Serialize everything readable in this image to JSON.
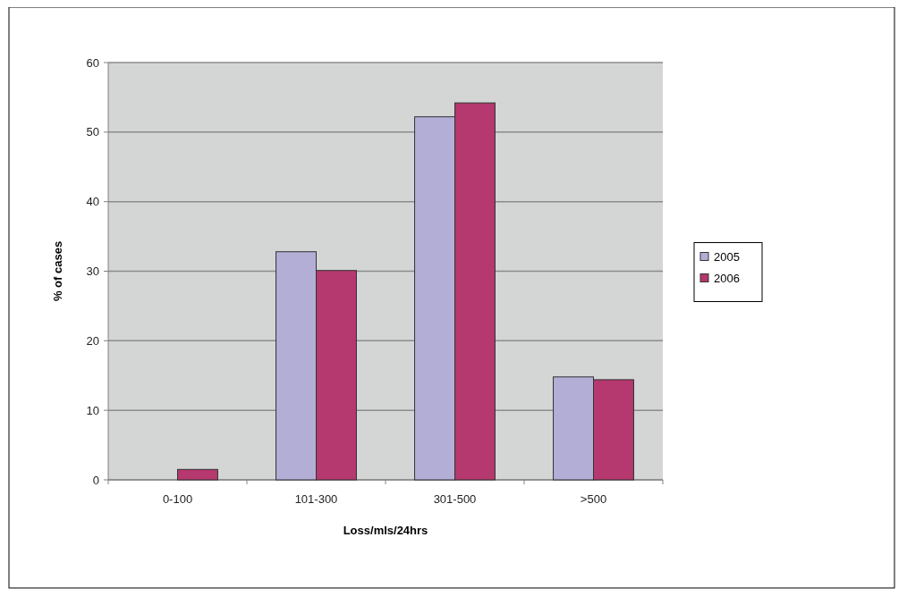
{
  "chart_data": {
    "type": "bar",
    "xlabel": "Loss/mls/24hrs",
    "ylabel": "% of cases",
    "categories": [
      "0-100",
      "101-300",
      "301-500",
      ">500"
    ],
    "series": [
      {
        "name": "2005",
        "color": "#b3aed6",
        "values": [
          0,
          32.8,
          52.2,
          14.8
        ]
      },
      {
        "name": "2006",
        "color": "#b5386f",
        "values": [
          1.5,
          30.1,
          54.2,
          14.4
        ]
      }
    ],
    "ylim": [
      0,
      60
    ],
    "yticks": [
      0,
      10,
      20,
      30,
      40,
      50,
      60
    ],
    "grid": "y",
    "legend": "right"
  }
}
